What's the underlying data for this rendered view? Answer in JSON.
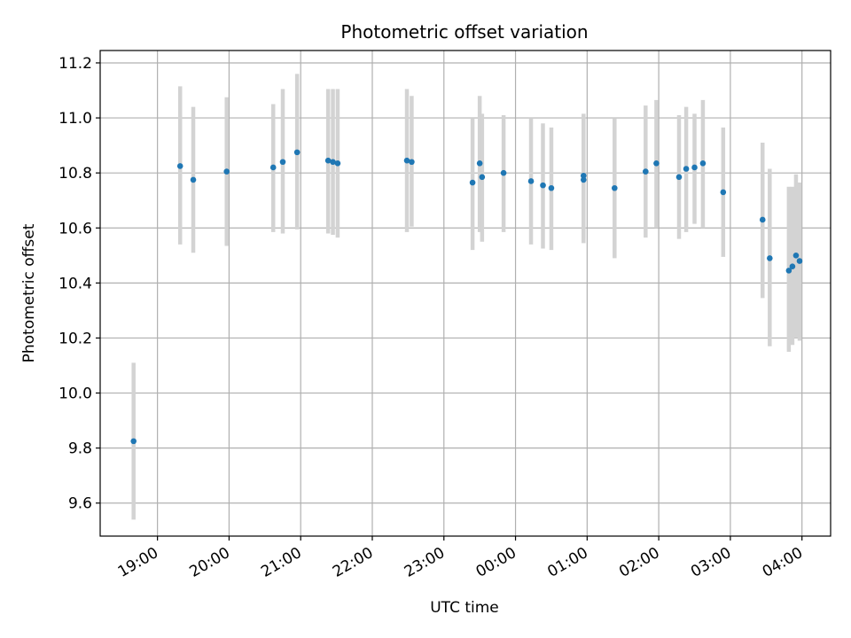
{
  "chart_data": {
    "type": "scatter",
    "title": "Photometric offset variation",
    "xlabel": "UTC time",
    "ylabel": "Photometric offset",
    "grid": true,
    "legend": "none",
    "colors": {
      "point": "#1f77b4",
      "errorbar": "#d3d3d3",
      "grid": "#b0b0b0"
    },
    "xlim": [
      "18:12",
      "04:24"
    ],
    "ylim": [
      9.48,
      11.245
    ],
    "x_ticks": [
      "19:00",
      "20:00",
      "21:00",
      "22:00",
      "23:00",
      "00:00",
      "01:00",
      "02:00",
      "03:00",
      "04:00"
    ],
    "y_ticks": [
      "9.6",
      "9.8",
      "10.0",
      "10.2",
      "10.4",
      "10.6",
      "10.8",
      "11.0",
      "11.2"
    ],
    "series": [
      {
        "points": [
          {
            "x": "18:40",
            "y": 9.825,
            "ylo": 9.54,
            "yhi": 10.11
          },
          {
            "x": "19:19",
            "y": 10.825,
            "ylo": 10.54,
            "yhi": 11.115
          },
          {
            "x": "19:30",
            "y": 10.775,
            "ylo": 10.51,
            "yhi": 11.04
          },
          {
            "x": "19:58",
            "y": 10.805,
            "ylo": 10.535,
            "yhi": 11.075
          },
          {
            "x": "20:37",
            "y": 10.82,
            "ylo": 10.585,
            "yhi": 11.05
          },
          {
            "x": "20:45",
            "y": 10.84,
            "ylo": 10.58,
            "yhi": 11.105
          },
          {
            "x": "20:57",
            "y": 10.875,
            "ylo": 10.595,
            "yhi": 11.16
          },
          {
            "x": "21:23",
            "y": 10.845,
            "ylo": 10.58,
            "yhi": 11.105
          },
          {
            "x": "21:27",
            "y": 10.84,
            "ylo": 10.575,
            "yhi": 11.105
          },
          {
            "x": "21:31",
            "y": 10.835,
            "ylo": 10.565,
            "yhi": 11.105
          },
          {
            "x": "22:29",
            "y": 10.845,
            "ylo": 10.585,
            "yhi": 11.105
          },
          {
            "x": "22:33",
            "y": 10.84,
            "ylo": 10.605,
            "yhi": 11.08
          },
          {
            "x": "23:24",
            "y": 10.765,
            "ylo": 10.52,
            "yhi": 11.0
          },
          {
            "x": "23:30",
            "y": 10.835,
            "ylo": 10.585,
            "yhi": 11.08
          },
          {
            "x": "23:32",
            "y": 10.785,
            "ylo": 10.55,
            "yhi": 11.015
          },
          {
            "x": "23:50",
            "y": 10.8,
            "ylo": 10.585,
            "yhi": 11.01
          },
          {
            "x": "00:13",
            "y": 10.77,
            "ylo": 10.54,
            "yhi": 11.0
          },
          {
            "x": "00:23",
            "y": 10.755,
            "ylo": 10.525,
            "yhi": 10.98
          },
          {
            "x": "00:30",
            "y": 10.745,
            "ylo": 10.52,
            "yhi": 10.965
          },
          {
            "x": "00:57",
            "y": 10.79,
            "ylo": 10.56,
            "yhi": 11.015
          },
          {
            "x": "00:57",
            "y": 10.775,
            "ylo": 10.545,
            "yhi": 11.0
          },
          {
            "x": "01:23",
            "y": 10.745,
            "ylo": 10.49,
            "yhi": 11.0
          },
          {
            "x": "01:49",
            "y": 10.805,
            "ylo": 10.565,
            "yhi": 11.045
          },
          {
            "x": "01:58",
            "y": 10.835,
            "ylo": 10.6,
            "yhi": 11.065
          },
          {
            "x": "02:17",
            "y": 10.785,
            "ylo": 10.56,
            "yhi": 11.01
          },
          {
            "x": "02:23",
            "y": 10.815,
            "ylo": 10.585,
            "yhi": 11.04
          },
          {
            "x": "02:30",
            "y": 10.82,
            "ylo": 10.615,
            "yhi": 11.015
          },
          {
            "x": "02:37",
            "y": 10.835,
            "ylo": 10.6,
            "yhi": 11.065
          },
          {
            "x": "02:54",
            "y": 10.73,
            "ylo": 10.495,
            "yhi": 10.965
          },
          {
            "x": "03:27",
            "y": 10.63,
            "ylo": 10.345,
            "yhi": 10.91
          },
          {
            "x": "03:33",
            "y": 10.49,
            "ylo": 10.17,
            "yhi": 10.815
          },
          {
            "x": "03:49",
            "y": 10.445,
            "ylo": 10.15,
            "yhi": 10.75
          },
          {
            "x": "03:52",
            "y": 10.46,
            "ylo": 10.175,
            "yhi": 10.75
          },
          {
            "x": "03:55",
            "y": 10.5,
            "ylo": 10.2,
            "yhi": 10.795
          },
          {
            "x": "03:58",
            "y": 10.48,
            "ylo": 10.19,
            "yhi": 10.765
          }
        ]
      }
    ]
  }
}
